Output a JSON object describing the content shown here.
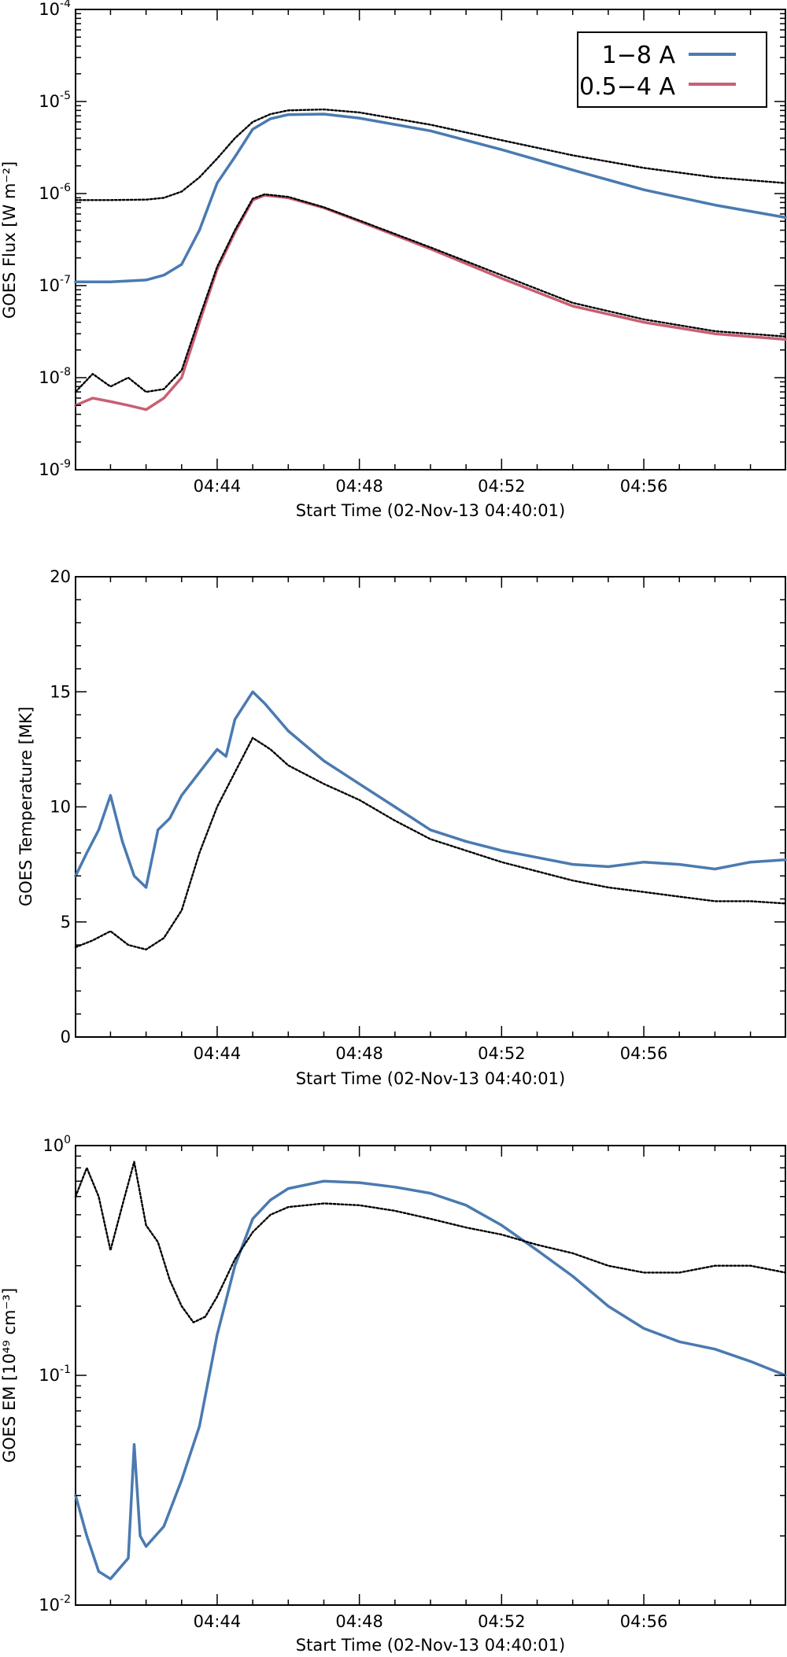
{
  "chart_data": [
    {
      "type": "line",
      "yscale": "log",
      "ylabel": "GOES Flux [W m⁻²]",
      "xlabel": "Start Time (02-Nov-13 04:40:01)",
      "xlim": [
        "04:40:01",
        "04:59:59"
      ],
      "ylim": [
        1e-09,
        0.0001
      ],
      "xticks": [
        "04:44",
        "04:48",
        "04:52",
        "04:56"
      ],
      "yticks": [
        {
          "value": 1e-09,
          "base": "10",
          "exp": "-9"
        },
        {
          "value": 1e-08,
          "base": "10",
          "exp": "-8"
        },
        {
          "value": 1e-07,
          "base": "10",
          "exp": "-7"
        },
        {
          "value": 1e-06,
          "base": "10",
          "exp": "-6"
        },
        {
          "value": 1e-05,
          "base": "10",
          "exp": "-5"
        },
        {
          "value": 0.0001,
          "base": "10",
          "exp": "-4"
        }
      ],
      "legend": {
        "position": "top-right",
        "entries": [
          {
            "label": "1−8 A",
            "color": "#4a7ab0"
          },
          {
            "label": "0.5−4 A",
            "color": "#c95f72"
          }
        ]
      },
      "series": [
        {
          "name": "1−8 A",
          "color": "#4a7ab0",
          "style": "solid",
          "x": [
            "04:40:01",
            "04:41:00",
            "04:42:00",
            "04:42:30",
            "04:43:00",
            "04:43:30",
            "04:44:00",
            "04:44:30",
            "04:45:00",
            "04:45:30",
            "04:46:00",
            "04:47:00",
            "04:48:00",
            "04:50:00",
            "04:52:00",
            "04:54:00",
            "04:56:00",
            "04:58:00",
            "04:59:59"
          ],
          "y": [
            1.1e-07,
            1.1e-07,
            1.15e-07,
            1.3e-07,
            1.7e-07,
            4e-07,
            1.3e-06,
            2.5e-06,
            5e-06,
            6.5e-06,
            7.2e-06,
            7.3e-06,
            6.6e-06,
            4.8e-06,
            3e-06,
            1.8e-06,
            1.1e-06,
            7.5e-07,
            5.5e-07
          ]
        },
        {
          "name": "0.5−4 A",
          "color": "#c95f72",
          "style": "solid",
          "x": [
            "04:40:01",
            "04:40:30",
            "04:41:00",
            "04:41:30",
            "04:42:00",
            "04:42:30",
            "04:43:00",
            "04:43:30",
            "04:44:00",
            "04:44:30",
            "04:45:00",
            "04:45:20",
            "04:46:00",
            "04:47:00",
            "04:48:00",
            "04:50:00",
            "04:52:00",
            "04:54:00",
            "04:56:00",
            "04:58:00",
            "04:59:59"
          ],
          "y": [
            5e-09,
            6e-09,
            5.5e-09,
            5e-09,
            4.5e-09,
            6e-09,
            1e-08,
            4e-08,
            1.5e-07,
            3.8e-07,
            8.5e-07,
            9.6e-07,
            9e-07,
            7e-07,
            5e-07,
            2.5e-07,
            1.2e-07,
            6e-08,
            4e-08,
            3e-08,
            2.6e-08
          ]
        },
        {
          "name": "",
          "color": "#000000",
          "style": "dotted",
          "x": [
            "04:40:01",
            "04:41:00",
            "04:42:00",
            "04:42:30",
            "04:43:00",
            "04:43:30",
            "04:44:00",
            "04:44:30",
            "04:45:00",
            "04:45:30",
            "04:46:00",
            "04:47:00",
            "04:48:00",
            "04:50:00",
            "04:52:00",
            "04:54:00",
            "04:56:00",
            "04:58:00",
            "04:59:59"
          ],
          "y": [
            8.5e-07,
            8.5e-07,
            8.6e-07,
            9e-07,
            1.05e-06,
            1.5e-06,
            2.4e-06,
            4e-06,
            6e-06,
            7.3e-06,
            8e-06,
            8.2e-06,
            7.6e-06,
            5.6e-06,
            3.8e-06,
            2.6e-06,
            1.9e-06,
            1.5e-06,
            1.3e-06
          ]
        },
        {
          "name": "",
          "color": "#000000",
          "style": "dotted",
          "x": [
            "04:40:01",
            "04:40:30",
            "04:41:00",
            "04:41:30",
            "04:42:00",
            "04:42:30",
            "04:43:00",
            "04:43:30",
            "04:44:00",
            "04:44:30",
            "04:45:00",
            "04:45:20",
            "04:46:00",
            "04:47:00",
            "04:48:00",
            "04:50:00",
            "04:52:00",
            "04:54:00",
            "04:56:00",
            "04:58:00",
            "04:59:59"
          ],
          "y": [
            7e-09,
            1.1e-08,
            8e-09,
            1e-08,
            7e-09,
            7.5e-09,
            1.2e-08,
            4.5e-08,
            1.6e-07,
            4e-07,
            8.8e-07,
            9.8e-07,
            9.2e-07,
            7.1e-07,
            5.1e-07,
            2.6e-07,
            1.3e-07,
            6.5e-08,
            4.3e-08,
            3.2e-08,
            2.8e-08
          ]
        }
      ]
    },
    {
      "type": "line",
      "ylabel": "GOES Temperature [MK]",
      "xlabel": "Start Time (02-Nov-13 04:40:01)",
      "xlim": [
        "04:40:01",
        "04:59:59"
      ],
      "ylim": [
        0,
        20
      ],
      "xticks": [
        "04:44",
        "04:48",
        "04:52",
        "04:56"
      ],
      "yticks": [
        "0",
        "5",
        "10",
        "15",
        "20"
      ],
      "series": [
        {
          "name": "",
          "color": "#4a7ab0",
          "style": "solid",
          "x": [
            "04:40:01",
            "04:40:20",
            "04:40:40",
            "04:41:00",
            "04:41:20",
            "04:41:40",
            "04:42:00",
            "04:42:20",
            "04:42:40",
            "04:43:00",
            "04:43:30",
            "04:44:00",
            "04:44:15",
            "04:44:30",
            "04:45:00",
            "04:45:20",
            "04:46:00",
            "04:47:00",
            "04:48:00",
            "04:49:00",
            "04:50:00",
            "04:51:00",
            "04:52:00",
            "04:53:00",
            "04:54:00",
            "04:55:00",
            "04:56:00",
            "04:57:00",
            "04:58:00",
            "04:59:00",
            "04:59:59"
          ],
          "y": [
            7,
            8,
            9,
            10.5,
            8.5,
            7,
            6.5,
            9,
            9.5,
            10.5,
            11.5,
            12.5,
            12.2,
            13.8,
            15,
            14.5,
            13.3,
            12,
            11,
            10,
            9,
            8.5,
            8.1,
            7.8,
            7.5,
            7.4,
            7.6,
            7.5,
            7.3,
            7.6,
            7.7
          ]
        },
        {
          "name": "",
          "color": "#000000",
          "style": "dotted",
          "x": [
            "04:40:01",
            "04:40:30",
            "04:41:00",
            "04:41:30",
            "04:42:00",
            "04:42:30",
            "04:43:00",
            "04:43:30",
            "04:44:00",
            "04:44:30",
            "04:45:00",
            "04:45:30",
            "04:46:00",
            "04:47:00",
            "04:48:00",
            "04:49:00",
            "04:50:00",
            "04:51:00",
            "04:52:00",
            "04:53:00",
            "04:54:00",
            "04:55:00",
            "04:56:00",
            "04:57:00",
            "04:58:00",
            "04:59:00",
            "04:59:59"
          ],
          "y": [
            3.9,
            4.2,
            4.6,
            4.0,
            3.8,
            4.3,
            5.5,
            8,
            10,
            11.5,
            13,
            12.5,
            11.8,
            11,
            10.3,
            9.4,
            8.6,
            8.1,
            7.6,
            7.2,
            6.8,
            6.5,
            6.3,
            6.1,
            5.9,
            5.9,
            5.8
          ]
        }
      ]
    },
    {
      "type": "line",
      "yscale": "log",
      "ylabel": "GOES EM [10⁴⁹ cm⁻³]",
      "xlabel": "Start Time (02-Nov-13 04:40:01)",
      "xlim": [
        "04:40:01",
        "04:59:59"
      ],
      "ylim": [
        0.01,
        1.0
      ],
      "xticks": [
        "04:44",
        "04:48",
        "04:52",
        "04:56"
      ],
      "yticks": [
        {
          "value": 0.01,
          "base": "10",
          "exp": "-2"
        },
        {
          "value": 0.1,
          "base": "10",
          "exp": "-1"
        },
        {
          "value": 1.0,
          "base": "10",
          "exp": "0"
        }
      ],
      "series": [
        {
          "name": "",
          "color": "#4a7ab0",
          "style": "solid",
          "x": [
            "04:40:01",
            "04:40:20",
            "04:40:40",
            "04:41:00",
            "04:41:30",
            "04:41:40",
            "04:41:50",
            "04:42:00",
            "04:42:30",
            "04:43:00",
            "04:43:30",
            "04:44:00",
            "04:44:30",
            "04:45:00",
            "04:45:30",
            "04:46:00",
            "04:47:00",
            "04:48:00",
            "04:49:00",
            "04:50:00",
            "04:51:00",
            "04:52:00",
            "04:53:00",
            "04:54:00",
            "04:55:00",
            "04:56:00",
            "04:57:00",
            "04:58:00",
            "04:59:00",
            "04:59:59"
          ],
          "y": [
            0.03,
            0.02,
            0.014,
            0.013,
            0.016,
            0.05,
            0.02,
            0.018,
            0.022,
            0.035,
            0.06,
            0.15,
            0.3,
            0.48,
            0.58,
            0.65,
            0.7,
            0.69,
            0.66,
            0.62,
            0.55,
            0.45,
            0.35,
            0.27,
            0.2,
            0.16,
            0.14,
            0.13,
            0.115,
            0.1
          ]
        },
        {
          "name": "",
          "color": "#000000",
          "style": "dotted",
          "x": [
            "04:40:01",
            "04:40:20",
            "04:40:40",
            "04:41:00",
            "04:41:20",
            "04:41:40",
            "04:42:00",
            "04:42:20",
            "04:42:40",
            "04:43:00",
            "04:43:20",
            "04:43:40",
            "04:44:00",
            "04:44:30",
            "04:45:00",
            "04:45:30",
            "04:46:00",
            "04:47:00",
            "04:48:00",
            "04:49:00",
            "04:50:00",
            "04:51:00",
            "04:52:00",
            "04:53:00",
            "04:54:00",
            "04:55:00",
            "04:56:00",
            "04:57:00",
            "04:58:00",
            "04:59:00",
            "04:59:59"
          ],
          "y": [
            0.6,
            0.8,
            0.6,
            0.35,
            0.55,
            0.85,
            0.45,
            0.38,
            0.26,
            0.2,
            0.17,
            0.18,
            0.22,
            0.32,
            0.42,
            0.5,
            0.54,
            0.56,
            0.55,
            0.52,
            0.48,
            0.44,
            0.41,
            0.37,
            0.34,
            0.3,
            0.28,
            0.28,
            0.3,
            0.3,
            0.28
          ]
        }
      ]
    }
  ]
}
